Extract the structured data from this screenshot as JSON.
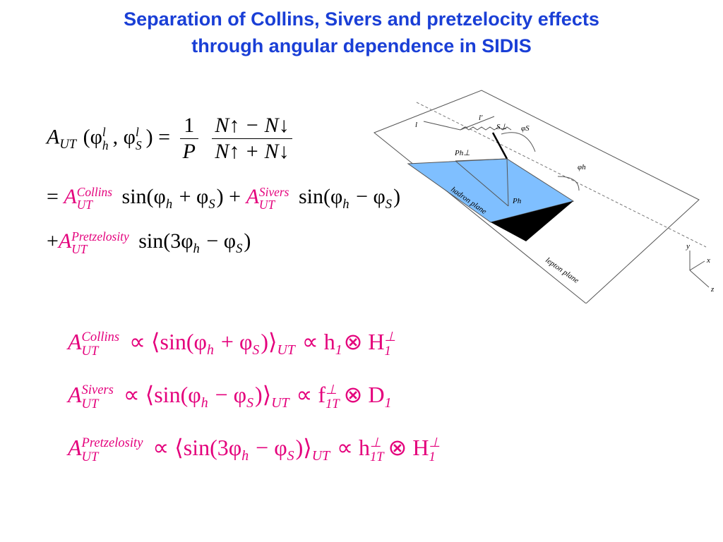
{
  "title": [
    "Separation of Collins, Sivers and pretzelocity effects",
    "through angular dependence in SIDIS"
  ],
  "definition": {
    "line1": [
      "A",
      "UT",
      "(φ",
      "l",
      "h",
      ", φ",
      "l",
      "S",
      ") =",
      "1",
      "P",
      "N↑ − N↓",
      "N↑ + N↓"
    ],
    "line2": [
      "=",
      "A",
      "Collins",
      "UT",
      "sin(φ",
      "h",
      " + φ",
      "S",
      ") +",
      "A",
      "Sivers",
      "UT",
      "sin(φ",
      "h",
      " − φ",
      "S",
      ")"
    ],
    "line3": [
      "+",
      "A",
      "Pretzelosity",
      "UT",
      "sin(3φ",
      "h",
      " − φ",
      "S",
      ")"
    ]
  },
  "relations": [
    [
      "A",
      "Collins",
      "UT",
      "∝ ⟨sin(φ",
      "h",
      " + φ",
      "S",
      ")⟩",
      "UT",
      "∝ h",
      "1",
      "⊗ H",
      "⊥",
      "1"
    ],
    [
      "A",
      "Sivers",
      "UT",
      "∝ ⟨sin(φ",
      "h",
      " − φ",
      "S",
      ")⟩",
      "UT",
      "∝ f",
      "⊥",
      "1T",
      "⊗ D",
      "1"
    ],
    [
      "A",
      "Pretzelosity",
      "UT",
      "∝ ⟨sin(3φ",
      "h",
      " − φ",
      "S",
      ")⟩",
      "UT",
      "∝ h",
      "⊥",
      "1T",
      "⊗ H",
      "⊥",
      "1"
    ]
  ],
  "diagram": {
    "labels": [
      "l",
      "l′",
      "S⊥",
      "φS",
      "Ph⊥",
      "φh",
      "Ph",
      "hadron plane",
      "lepton plane"
    ],
    "axes": [
      "y",
      "x",
      "z"
    ]
  }
}
